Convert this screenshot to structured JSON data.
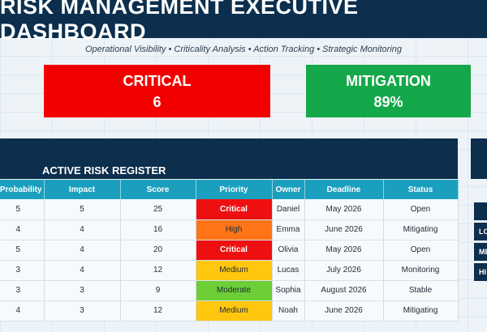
{
  "header": {
    "title": "RISK MANAGEMENT EXECUTIVE DASHBOARD",
    "subtitle": "Operational Visibility • Criticality Analysis • Action Tracking • Strategic Monitoring"
  },
  "kpis": {
    "critical": {
      "label": "CRITICAL",
      "value": "6",
      "color": "#f20000"
    },
    "mitigation": {
      "label": "MITIGATION",
      "value": "89%",
      "color": "#14a84a"
    }
  },
  "register": {
    "title": "ACTIVE RISK REGISTER",
    "columns": [
      "Probability",
      "Impact",
      "Score",
      "Priority",
      "Owner",
      "Deadline",
      "Status"
    ],
    "rows": [
      {
        "probability": "5",
        "impact": "5",
        "score": "25",
        "priority": "Critical",
        "priority_level": "critical",
        "owner": "Daniel",
        "deadline": "May 2026",
        "status": "Open"
      },
      {
        "probability": "4",
        "impact": "4",
        "score": "16",
        "priority": "High",
        "priority_level": "high",
        "owner": "Emma",
        "deadline": "June 2026",
        "status": "Mitigating"
      },
      {
        "probability": "5",
        "impact": "4",
        "score": "20",
        "priority": "Critical",
        "priority_level": "critical",
        "owner": "Olivia",
        "deadline": "May 2026",
        "status": "Open"
      },
      {
        "probability": "3",
        "impact": "4",
        "score": "12",
        "priority": "Medium",
        "priority_level": "medium",
        "owner": "Lucas",
        "deadline": "July 2026",
        "status": "Monitoring"
      },
      {
        "probability": "3",
        "impact": "3",
        "score": "9",
        "priority": "Moderate",
        "priority_level": "moderate",
        "owner": "Sophia",
        "deadline": "August 2026",
        "status": "Stable"
      },
      {
        "probability": "4",
        "impact": "3",
        "score": "12",
        "priority": "Medium",
        "priority_level": "medium",
        "owner": "Noah",
        "deadline": "June 2026",
        "status": "Mitigating"
      }
    ]
  },
  "side_panel": {
    "row_labels": [
      "",
      "LO",
      "ME",
      "HI"
    ]
  },
  "colors": {
    "navy": "#0c2f4d",
    "header_teal": "#1aa0be",
    "critical": "#ee1010",
    "high": "#ff7416",
    "medium": "#ffc70f",
    "moderate": "#6dce37"
  }
}
